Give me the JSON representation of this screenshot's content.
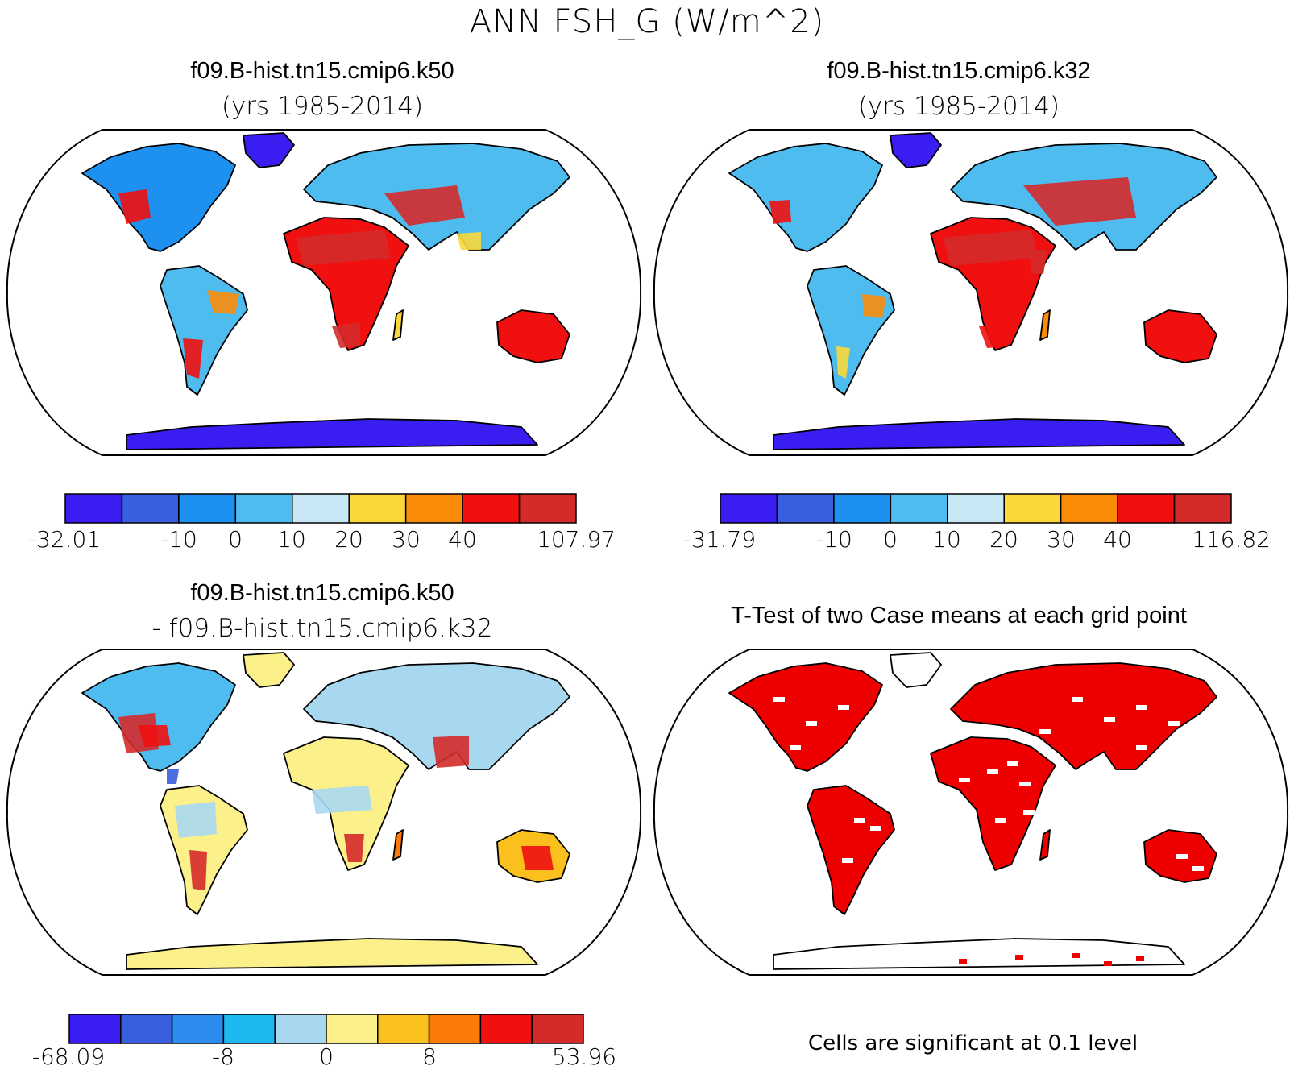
{
  "figure": {
    "title": "ANN FSH_G (W/m^2)"
  },
  "panels": [
    {
      "title": "f09.B-hist.tn15.cmip6.k50",
      "subtitle": "(yrs 1985-2014)",
      "colorbar": {
        "colors": [
          "#3a1df0",
          "#3a5ee0",
          "#1e90f0",
          "#4fbcf0",
          "#c8e8f6",
          "#fbd83a",
          "#fb8c0a",
          "#f01010",
          "#d42a2a"
        ],
        "labels": [
          "-32.01",
          "-10",
          "0",
          "10",
          "20",
          "30",
          "40",
          "107.97"
        ]
      }
    },
    {
      "title": "f09.B-hist.tn15.cmip6.k32",
      "subtitle": "(yrs 1985-2014)",
      "colorbar": {
        "colors": [
          "#3a1df0",
          "#3a5ee0",
          "#1e90f0",
          "#4fbcf0",
          "#c8e8f6",
          "#fbd83a",
          "#fb8c0a",
          "#f01010",
          "#d42a2a"
        ],
        "labels": [
          "-31.79",
          "-10",
          "0",
          "10",
          "20",
          "30",
          "40",
          "116.82"
        ]
      }
    },
    {
      "title": "f09.B-hist.tn15.cmip6.k50",
      "subtitle": "- f09.B-hist.tn15.cmip6.k32",
      "colorbar": {
        "colors": [
          "#3a1df0",
          "#3a5ee0",
          "#2c8cf0",
          "#1cb8f0",
          "#a8d8f0",
          "#fbf08a",
          "#fbc01e",
          "#fb7a0a",
          "#f01010",
          "#d42a2a"
        ],
        "labels": [
          "-68.09",
          "-8",
          "0",
          "8",
          "53.96"
        ]
      }
    },
    {
      "title": "T-Test of two Case means at each grid point",
      "note": "Cells are significant at 0.1 level",
      "significant_color": "#ee0000"
    }
  ]
}
